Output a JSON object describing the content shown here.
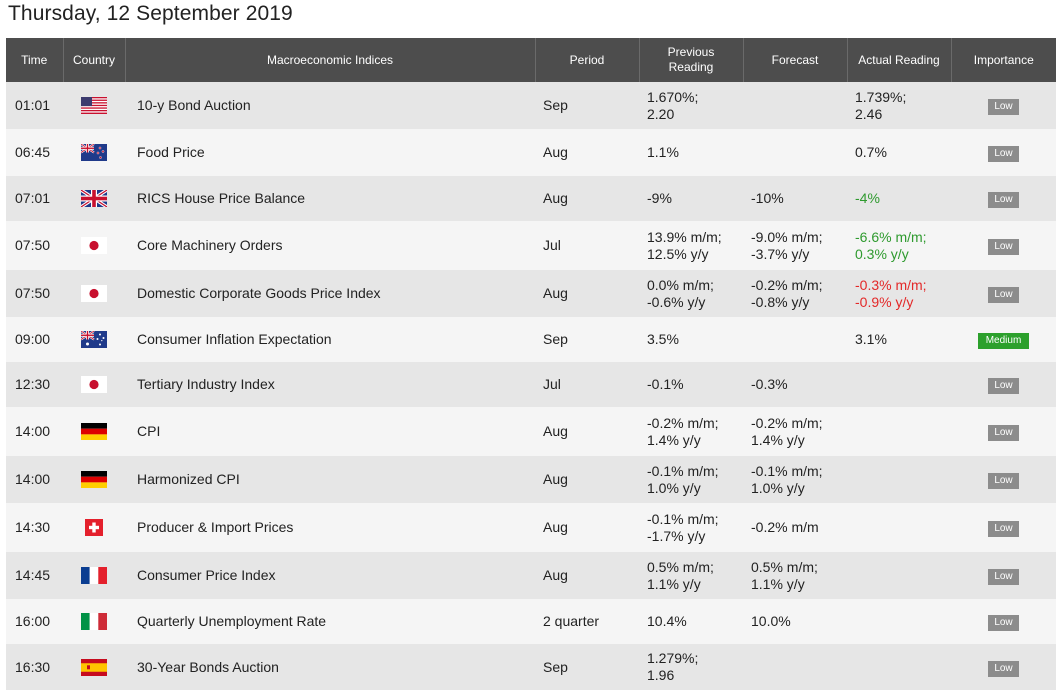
{
  "page": {
    "date": "Thursday, 12 September 2019"
  },
  "headers": {
    "time": "Time",
    "country": "Country",
    "indices": "Macroeconomic Indices",
    "period": "Period",
    "previous_line1": "Previous",
    "previous_line2": "Reading",
    "forecast": "Forecast",
    "actual": "Actual Reading",
    "importance": "Importance"
  },
  "rows": [
    {
      "time": "01:01",
      "flag": "us-flag-icon",
      "index": "10-y Bond Auction",
      "period": "Sep",
      "prev1": "1.670%;",
      "prev2": "2.20",
      "fc1": "",
      "fc2": "",
      "act1": "1.739%;",
      "act2": "2.46",
      "act_color": "neutral",
      "importance": "Low"
    },
    {
      "time": "06:45",
      "flag": "nz-flag-icon",
      "index": "Food Price",
      "period": "Aug",
      "prev1": "1.1%",
      "prev2": "",
      "fc1": "",
      "fc2": "",
      "act1": "0.7%",
      "act2": "",
      "act_color": "neutral",
      "importance": "Low"
    },
    {
      "time": "07:01",
      "flag": "uk-flag-icon",
      "index": "RICS House Price Balance",
      "period": "Aug",
      "prev1": "-9%",
      "prev2": "",
      "fc1": "-10%",
      "fc2": "",
      "act1": "-4%",
      "act2": "",
      "act_color": "pos",
      "importance": "Low"
    },
    {
      "time": "07:50",
      "flag": "jp-flag-icon",
      "index": "Core Machinery Orders",
      "period": "Jul",
      "prev1": "13.9% m/m;",
      "prev2": "12.5% y/y",
      "fc1": "-9.0% m/m;",
      "fc2": "-3.7% y/y",
      "act1": "-6.6% m/m;",
      "act2": "0.3% y/y",
      "act_color": "pos",
      "importance": "Low"
    },
    {
      "time": "07:50",
      "flag": "jp-flag-icon",
      "index": "Domestic Corporate Goods Price Index",
      "period": "Aug",
      "prev1": "0.0% m/m;",
      "prev2": "-0.6% y/y",
      "fc1": "-0.2% m/m;",
      "fc2": "-0.8% y/y",
      "act1": "-0.3% m/m;",
      "act2": "-0.9% y/y",
      "act_color": "neg",
      "importance": "Low"
    },
    {
      "time": "09:00",
      "flag": "au-flag-icon",
      "index": "Consumer Inflation Expectation",
      "period": "Sep",
      "prev1": "3.5%",
      "prev2": "",
      "fc1": "",
      "fc2": "",
      "act1": "3.1%",
      "act2": "",
      "act_color": "neutral",
      "importance": "Medium"
    },
    {
      "time": "12:30",
      "flag": "jp-flag-icon",
      "index": "Tertiary Industry Index",
      "period": "Jul",
      "prev1": "-0.1%",
      "prev2": "",
      "fc1": "-0.3%",
      "fc2": "",
      "act1": "",
      "act2": "",
      "act_color": "neutral",
      "importance": "Low"
    },
    {
      "time": "14:00",
      "flag": "de-flag-icon",
      "index": "CPI",
      "period": "Aug",
      "prev1": "-0.2% m/m;",
      "prev2": "1.4% y/y",
      "fc1": "-0.2% m/m;",
      "fc2": "1.4% y/y",
      "act1": "",
      "act2": "",
      "act_color": "neutral",
      "importance": "Low"
    },
    {
      "time": "14:00",
      "flag": "de-flag-icon",
      "index": "Harmonized CPI",
      "period": "Aug",
      "prev1": "-0.1% m/m;",
      "prev2": "1.0% y/y",
      "fc1": "-0.1% m/m;",
      "fc2": "1.0% y/y",
      "act1": "",
      "act2": "",
      "act_color": "neutral",
      "importance": "Low"
    },
    {
      "time": "14:30",
      "flag": "ch-flag-icon",
      "index": "Producer & Import Prices",
      "period": "Aug",
      "prev1": "-0.1% m/m;",
      "prev2": "-1.7% y/y",
      "fc1": "-0.2% m/m",
      "fc2": "",
      "act1": "",
      "act2": "",
      "act_color": "neutral",
      "importance": "Low"
    },
    {
      "time": "14:45",
      "flag": "fr-flag-icon",
      "index": "Consumer Price Index",
      "period": "Aug",
      "prev1": "0.5% m/m;",
      "prev2": "1.1% y/y",
      "fc1": "0.5% m/m;",
      "fc2": "1.1% y/y",
      "act1": "",
      "act2": "",
      "act_color": "neutral",
      "importance": "Low"
    },
    {
      "time": "16:00",
      "flag": "it-flag-icon",
      "index": "Quarterly Unemployment Rate",
      "period": "2 quarter",
      "prev1": "10.4%",
      "prev2": "",
      "fc1": "10.0%",
      "fc2": "",
      "act1": "",
      "act2": "",
      "act_color": "neutral",
      "importance": "Low"
    },
    {
      "time": "16:30",
      "flag": "es-flag-icon",
      "index": "30-Year Bonds Auction",
      "period": "Sep",
      "prev1": "1.279%;",
      "prev2": "1.96",
      "fc1": "",
      "fc2": "",
      "act1": "",
      "act2": "",
      "act_color": "neutral",
      "importance": "Low"
    }
  ]
}
